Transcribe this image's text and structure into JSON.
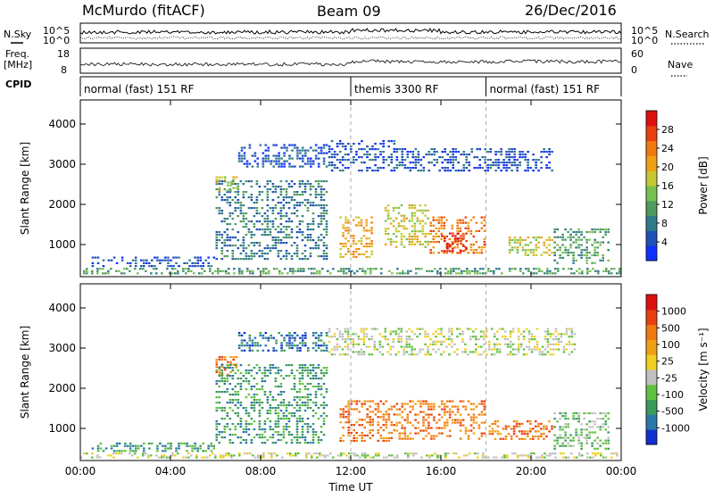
{
  "header": {
    "station": "McMurdo (fitACF)",
    "beam": "Beam 09",
    "date": "26/Dec/2016"
  },
  "top_panel": {
    "left_labels": {
      "sky": "N.Sky",
      "freq_line1": "Freq.",
      "freq_line2": "[MHz]",
      "cpid": "CPID"
    },
    "right_labels": {
      "search": "N.Search",
      "nave": "Nave"
    },
    "sky_ticks_left": [
      "10^5",
      "10^0"
    ],
    "sky_ticks_right": [
      "10^5",
      "10^0"
    ],
    "freq_ticks_left": [
      "18",
      "8"
    ],
    "nave_ticks_right": [
      "60",
      "0"
    ],
    "cpid_segments": [
      {
        "label": "normal (fast) 151 RF",
        "start_hour": 0
      },
      {
        "label": "themis 3300 RF",
        "start_hour": 12
      },
      {
        "label": "normal (fast) 151 RF",
        "start_hour": 18
      }
    ]
  },
  "chart_data": [
    {
      "type": "heatmap",
      "name": "power-panel",
      "ylabel": "Slant Range [km]",
      "ylim": [
        200,
        4600
      ],
      "yticks": [
        "1000",
        "2000",
        "3000",
        "4000"
      ],
      "xlim_hours": [
        0,
        24
      ],
      "xticks": [
        "00:00",
        "04:00",
        "08:00",
        "12:00",
        "16:00",
        "20:00",
        "00:00"
      ],
      "colorbar": {
        "label": "Power [dB]",
        "ticks": [
          "4",
          "8",
          "12",
          "16",
          "20",
          "24",
          "28"
        ],
        "colors": [
          "#1030ff",
          "#2050b8",
          "#2f7a8a",
          "#4f9a5e",
          "#78c050",
          "#c8c832",
          "#f0a018",
          "#f07a10",
          "#e84010",
          "#e01010"
        ]
      },
      "regions": [
        {
          "t0": 0,
          "t1": 24,
          "r0": 250,
          "r1": 420,
          "level": 3
        },
        {
          "t0": 0.5,
          "t1": 6,
          "r0": 420,
          "r1": 700,
          "level": 1
        },
        {
          "t0": 6,
          "t1": 11,
          "r0": 600,
          "r1": 2600,
          "level": 2
        },
        {
          "t0": 6,
          "t1": 7,
          "r0": 2300,
          "r1": 2700,
          "level": 5
        },
        {
          "t0": 7,
          "t1": 11,
          "r0": 2900,
          "r1": 3500,
          "level": 1
        },
        {
          "t0": 11,
          "t1": 14,
          "r0": 2800,
          "r1": 3600,
          "level": 1
        },
        {
          "t0": 11.5,
          "t1": 13,
          "r0": 650,
          "r1": 1700,
          "level": 6
        },
        {
          "t0": 13.5,
          "t1": 15.5,
          "r0": 900,
          "r1": 2000,
          "level": 5
        },
        {
          "t0": 15.5,
          "t1": 18,
          "r0": 750,
          "r1": 1700,
          "level": 7
        },
        {
          "t0": 16,
          "t1": 17.2,
          "r0": 800,
          "r1": 1300,
          "level": 9
        },
        {
          "t0": 14,
          "t1": 21,
          "r0": 2800,
          "r1": 3400,
          "level": 1
        },
        {
          "t0": 19,
          "t1": 21,
          "r0": 700,
          "r1": 1200,
          "level": 5
        },
        {
          "t0": 21,
          "t1": 23.5,
          "r0": 500,
          "r1": 1400,
          "level": 3
        }
      ]
    },
    {
      "type": "heatmap",
      "name": "velocity-panel",
      "xlabel": "Time UT",
      "ylabel": "Slant Range [km]",
      "ylim": [
        200,
        4600
      ],
      "yticks": [
        "1000",
        "2000",
        "3000",
        "4000"
      ],
      "xlim_hours": [
        0,
        24
      ],
      "xticks": [
        "00:00",
        "04:00",
        "08:00",
        "12:00",
        "16:00",
        "20:00",
        "00:00"
      ],
      "colorbar": {
        "label": "Velocity [m s⁻¹]",
        "ticks": [
          "1000",
          "500",
          "100",
          "25",
          "-25",
          "-100",
          "-500",
          "-1000"
        ],
        "colors": [
          "#1030d0",
          "#2a78a8",
          "#3c9a5a",
          "#60c040",
          "#c0c0c0",
          "#f0d020",
          "#f0a018",
          "#f07a10",
          "#e84010",
          "#e01010"
        ]
      },
      "regions": [
        {
          "t0": 0,
          "t1": 24,
          "r0": 250,
          "r1": 400,
          "level": 4
        },
        {
          "t0": 0.5,
          "t1": 6,
          "r0": 400,
          "r1": 650,
          "level": 2
        },
        {
          "t0": 6,
          "t1": 7,
          "r0": 2300,
          "r1": 2800,
          "level": 7
        },
        {
          "t0": 6,
          "t1": 11,
          "r0": 600,
          "r1": 2600,
          "level": 2
        },
        {
          "t0": 7,
          "t1": 11,
          "r0": 2900,
          "r1": 3400,
          "level": 1
        },
        {
          "t0": 11.5,
          "t1": 14,
          "r0": 650,
          "r1": 1700,
          "level": 7
        },
        {
          "t0": 14,
          "t1": 18,
          "r0": 700,
          "r1": 1700,
          "level": 7
        },
        {
          "t0": 11,
          "t1": 22,
          "r0": 2800,
          "r1": 3500,
          "level": 4
        },
        {
          "t0": 18,
          "t1": 21,
          "r0": 700,
          "r1": 1200,
          "level": 7
        },
        {
          "t0": 21,
          "t1": 23.5,
          "r0": 450,
          "r1": 1400,
          "level": 3
        }
      ]
    }
  ]
}
